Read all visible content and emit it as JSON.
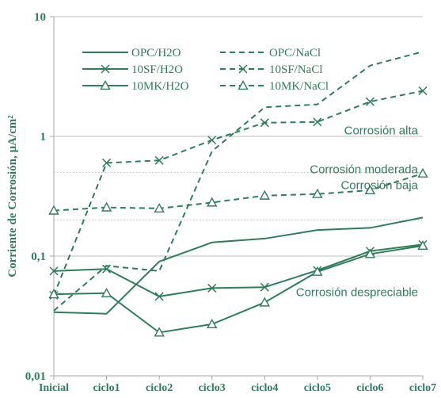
{
  "colors": {
    "series": "#2e7d5b",
    "grid": "#bfbfbf",
    "axis": "#a6a6a6"
  },
  "chart_data": {
    "type": "line",
    "y_scale": "log",
    "ylim": [
      0.01,
      10
    ],
    "yticks": [
      {
        "value": 10,
        "label": "10"
      },
      {
        "value": 1,
        "label": "1"
      },
      {
        "value": 0.1,
        "label": "0,1"
      },
      {
        "value": 0.01,
        "label": "0,01"
      }
    ],
    "ylabel": "Corriente de Corrosión, µA/cm²",
    "categories": [
      "Inicial",
      "ciclo1",
      "ciclo2",
      "ciclo3",
      "ciclo4",
      "ciclo5",
      "ciclo6",
      "ciclo7"
    ],
    "grid": "horizontal",
    "legend_position": "top-left",
    "series": [
      {
        "name": "OPC/H2O",
        "dash": "solid",
        "marker": "none",
        "values": [
          0.034,
          0.033,
          0.09,
          0.13,
          0.14,
          0.165,
          0.172,
          0.21
        ]
      },
      {
        "name": "OPC/NaCl",
        "dash": "dashed",
        "marker": "none",
        "values": [
          0.035,
          0.083,
          0.075,
          0.75,
          1.75,
          1.85,
          3.9,
          5.1
        ]
      },
      {
        "name": "10SF/H2O",
        "dash": "solid",
        "marker": "x",
        "values": [
          0.075,
          0.078,
          0.046,
          0.054,
          0.055,
          0.076,
          0.11,
          0.125
        ]
      },
      {
        "name": "10SF/NaCl",
        "dash": "dashed",
        "marker": "x",
        "values": [
          0.047,
          0.6,
          0.63,
          0.93,
          1.3,
          1.32,
          1.95,
          2.4
        ]
      },
      {
        "name": "10MK/H2O",
        "dash": "solid",
        "marker": "triangle",
        "values": [
          0.048,
          0.049,
          0.023,
          0.027,
          0.041,
          0.074,
          0.104,
          0.122
        ]
      },
      {
        "name": "10MK/NaCl",
        "dash": "dashed",
        "marker": "triangle",
        "values": [
          0.24,
          0.255,
          0.25,
          0.28,
          0.32,
          0.33,
          0.355,
          0.49
        ]
      }
    ],
    "annotations": [
      {
        "text": "Corrosión alta",
        "x": 6.6,
        "y": 1.12
      },
      {
        "text": "Corrosión moderada",
        "x": 6.45,
        "y": 0.53
      },
      {
        "text": "Corrosión baja",
        "x": 6.55,
        "y": 0.39
      },
      {
        "text": "Corrosión despreciable",
        "x": 6.1,
        "y": 0.05
      }
    ],
    "band_lines": [
      1.0,
      0.5,
      0.2,
      0.1
    ]
  }
}
